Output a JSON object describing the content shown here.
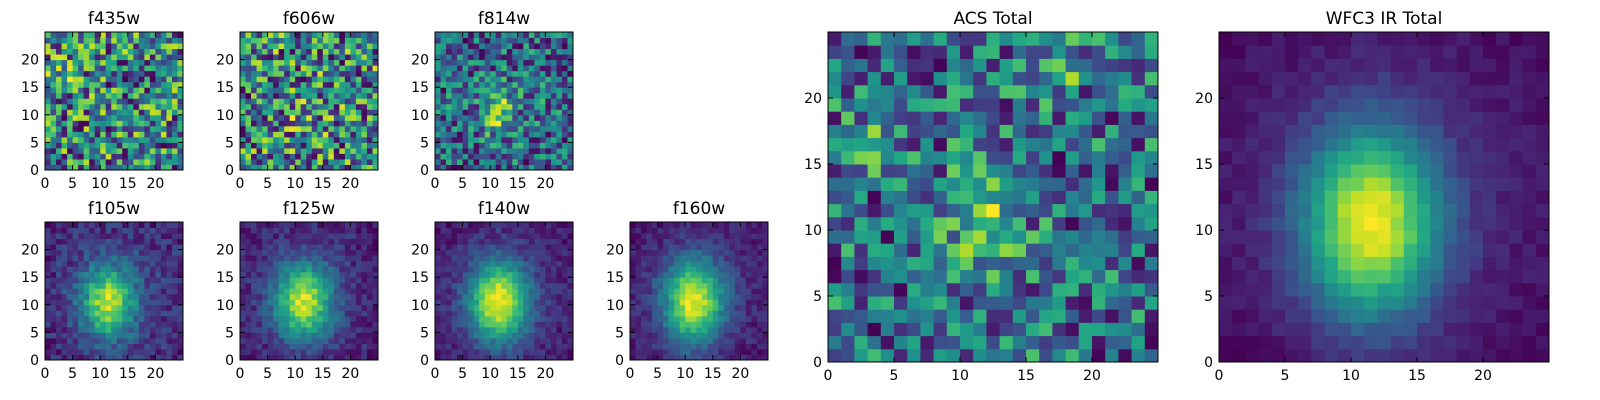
{
  "chart_data": [
    {
      "type": "heatmap",
      "title": "f435w",
      "x_ticks": [
        0,
        5,
        10,
        15,
        20
      ],
      "y_ticks": [
        0,
        5,
        10,
        15,
        20
      ],
      "xlim": [
        0,
        25
      ],
      "ylim": [
        0,
        25
      ],
      "grid_size": 25,
      "grid": false,
      "colormap": "viridis",
      "pattern": "noise",
      "source": {
        "x": 3,
        "y": 16,
        "sigma": 2.5,
        "amp": 0.15
      },
      "noise": 0.55,
      "base": 0.55,
      "seed": 11
    },
    {
      "type": "heatmap",
      "title": "f606w",
      "x_ticks": [
        0,
        5,
        10,
        15,
        20
      ],
      "y_ticks": [
        0,
        5,
        10,
        15,
        20
      ],
      "xlim": [
        0,
        25
      ],
      "ylim": [
        0,
        25
      ],
      "grid_size": 25,
      "grid": false,
      "colormap": "viridis",
      "pattern": "noise",
      "source": {
        "x": 11,
        "y": 10,
        "sigma": 2.5,
        "amp": 0.12
      },
      "noise": 0.5,
      "base": 0.5,
      "seed": 23
    },
    {
      "type": "heatmap",
      "title": "f814w",
      "x_ticks": [
        0,
        5,
        10,
        15,
        20
      ],
      "y_ticks": [
        0,
        5,
        10,
        15,
        20
      ],
      "xlim": [
        0,
        25
      ],
      "ylim": [
        0,
        25
      ],
      "grid_size": 25,
      "grid": false,
      "colormap": "viridis",
      "pattern": "source",
      "source": {
        "x": 11,
        "y": 10,
        "sx": 1.6,
        "sy": 2.6,
        "amp": 0.45
      },
      "noise": 0.35,
      "base": 0.35,
      "seed": 37
    },
    {
      "type": "heatmap",
      "title": "f105w",
      "x_ticks": [
        0,
        5,
        10,
        15,
        20
      ],
      "y_ticks": [
        0,
        5,
        10,
        15,
        20
      ],
      "xlim": [
        0,
        25
      ],
      "ylim": [
        0,
        25
      ],
      "grid_size": 25,
      "grid": false,
      "colormap": "viridis",
      "pattern": "source",
      "source": {
        "x": 11,
        "y": 10,
        "sx": 3.4,
        "sy": 4.6,
        "amp": 0.7
      },
      "noise": 0.12,
      "base": 0.25,
      "seed": 41
    },
    {
      "type": "heatmap",
      "title": "f125w",
      "x_ticks": [
        0,
        5,
        10,
        15,
        20
      ],
      "y_ticks": [
        0,
        5,
        10,
        15,
        20
      ],
      "xlim": [
        0,
        25
      ],
      "ylim": [
        0,
        25
      ],
      "grid_size": 25,
      "grid": false,
      "colormap": "viridis",
      "pattern": "source",
      "source": {
        "x": 11,
        "y": 10,
        "sx": 3.6,
        "sy": 4.8,
        "amp": 0.75
      },
      "noise": 0.1,
      "base": 0.18,
      "seed": 53
    },
    {
      "type": "heatmap",
      "title": "f140w",
      "x_ticks": [
        0,
        5,
        10,
        15,
        20
      ],
      "y_ticks": [
        0,
        5,
        10,
        15,
        20
      ],
      "xlim": [
        0,
        25
      ],
      "ylim": [
        0,
        25
      ],
      "grid_size": 25,
      "grid": false,
      "colormap": "viridis",
      "pattern": "source",
      "source": {
        "x": 11,
        "y": 10,
        "sx": 3.7,
        "sy": 5.0,
        "amp": 0.78
      },
      "noise": 0.08,
      "base": 0.14,
      "seed": 61
    },
    {
      "type": "heatmap",
      "title": "f160w",
      "x_ticks": [
        0,
        5,
        10,
        15,
        20
      ],
      "y_ticks": [
        0,
        5,
        10,
        15,
        20
      ],
      "xlim": [
        0,
        25
      ],
      "ylim": [
        0,
        25
      ],
      "grid_size": 25,
      "grid": false,
      "colormap": "viridis",
      "pattern": "source",
      "source": {
        "x": 11,
        "y": 10,
        "sx": 3.8,
        "sy": 5.2,
        "amp": 0.8
      },
      "noise": 0.08,
      "base": 0.12,
      "seed": 73
    },
    {
      "type": "heatmap",
      "title": "ACS Total",
      "x_ticks": [
        0,
        5,
        10,
        15,
        20
      ],
      "y_ticks": [
        0,
        5,
        10,
        15,
        20
      ],
      "xlim": [
        0,
        25
      ],
      "ylim": [
        0,
        25
      ],
      "grid_size": 25,
      "grid": false,
      "colormap": "viridis",
      "pattern": "noise",
      "source": {
        "x": 11,
        "y": 10,
        "sx": 2.5,
        "sy": 3.0,
        "amp": 0.35
      },
      "extra_sources": [
        {
          "x": 2,
          "y": 16,
          "sx": 1.5,
          "sy": 1.5,
          "amp": 0.3
        },
        {
          "x": 17,
          "y": 22,
          "sx": 1.2,
          "sy": 1.5,
          "amp": 0.35
        }
      ],
      "noise": 0.38,
      "base": 0.45,
      "seed": 89
    },
    {
      "type": "heatmap",
      "title": "WFC3 IR Total",
      "x_ticks": [
        0,
        5,
        10,
        15,
        20
      ],
      "y_ticks": [
        0,
        5,
        10,
        15,
        20
      ],
      "xlim": [
        0,
        25
      ],
      "ylim": [
        0,
        25
      ],
      "grid_size": 25,
      "grid": false,
      "colormap": "viridis",
      "pattern": "source",
      "source": {
        "x": 11,
        "y": 10,
        "sx": 3.6,
        "sy": 5.0,
        "amp": 0.85
      },
      "noise": 0.04,
      "base": 0.08,
      "seed": 97
    }
  ]
}
